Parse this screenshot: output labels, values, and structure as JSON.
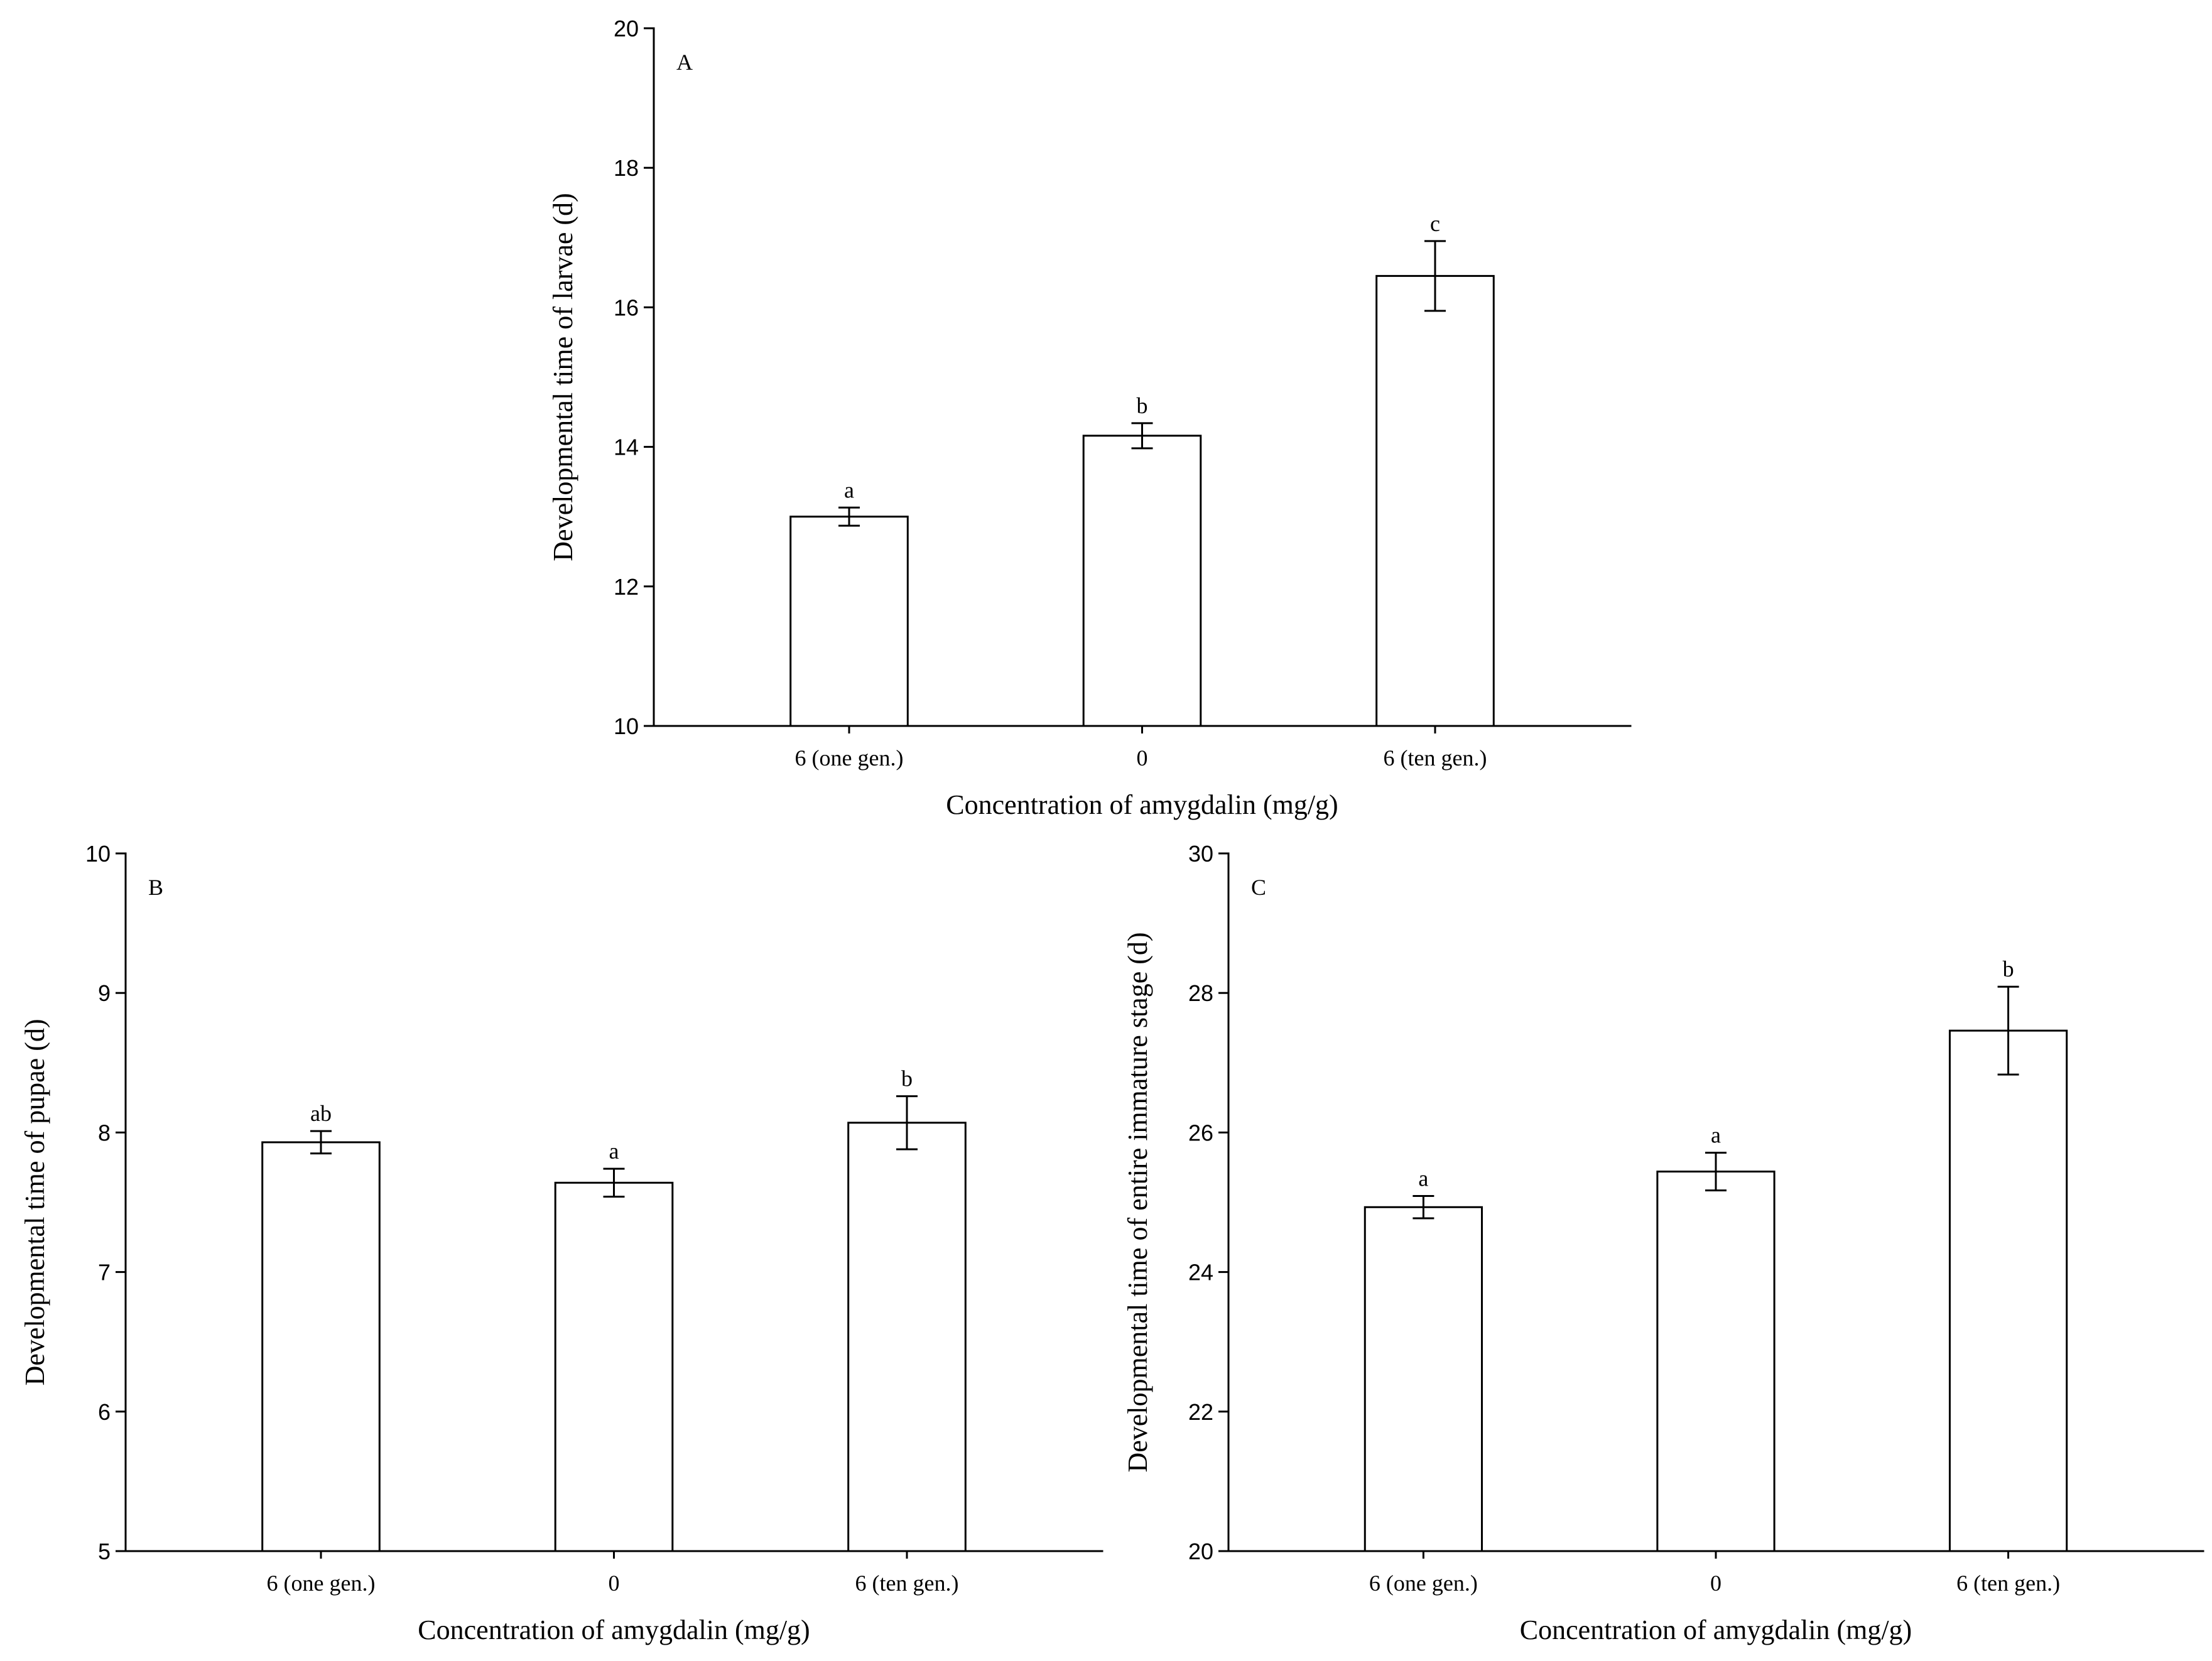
{
  "chart_data": [
    {
      "panel": "A",
      "type": "bar",
      "categories": [
        "6 (one gen.)",
        "0",
        "6 (ten gen.)"
      ],
      "values": [
        13.0,
        14.16,
        16.45
      ],
      "errors": [
        0.13,
        0.18,
        0.5
      ],
      "labels": [
        "a",
        "b",
        "c"
      ],
      "xlabel": "Concentration of amygdalin (mg/g)",
      "ylabel": "Developmental time of larvae (d)",
      "ylim": [
        10,
        20
      ],
      "yticks": [
        10,
        12,
        14,
        16,
        18,
        20
      ],
      "grid": false
    },
    {
      "panel": "B",
      "type": "bar",
      "categories": [
        "6 (one gen.)",
        "0",
        "6 (ten gen.)"
      ],
      "values": [
        7.93,
        7.64,
        8.07
      ],
      "errors": [
        0.08,
        0.1,
        0.19
      ],
      "labels": [
        "ab",
        "a",
        "b"
      ],
      "xlabel": "Concentration of amygdalin (mg/g)",
      "ylabel": "Developmental time of pupae (d)",
      "ylim": [
        5,
        10
      ],
      "yticks": [
        5,
        6,
        7,
        8,
        9,
        10
      ],
      "grid": false
    },
    {
      "panel": "C",
      "type": "bar",
      "categories": [
        "6 (one gen.)",
        "0",
        "6 (ten gen.)"
      ],
      "values": [
        24.93,
        25.44,
        27.46
      ],
      "errors": [
        0.16,
        0.27,
        0.63
      ],
      "labels": [
        "a",
        "a",
        "b"
      ],
      "xlabel": "Concentration of amygdalin (mg/g)",
      "ylabel": "Developmental time of entire immature stage (d)",
      "ylim": [
        20,
        30
      ],
      "yticks": [
        20,
        22,
        24,
        26,
        28,
        30
      ],
      "grid": false
    }
  ]
}
